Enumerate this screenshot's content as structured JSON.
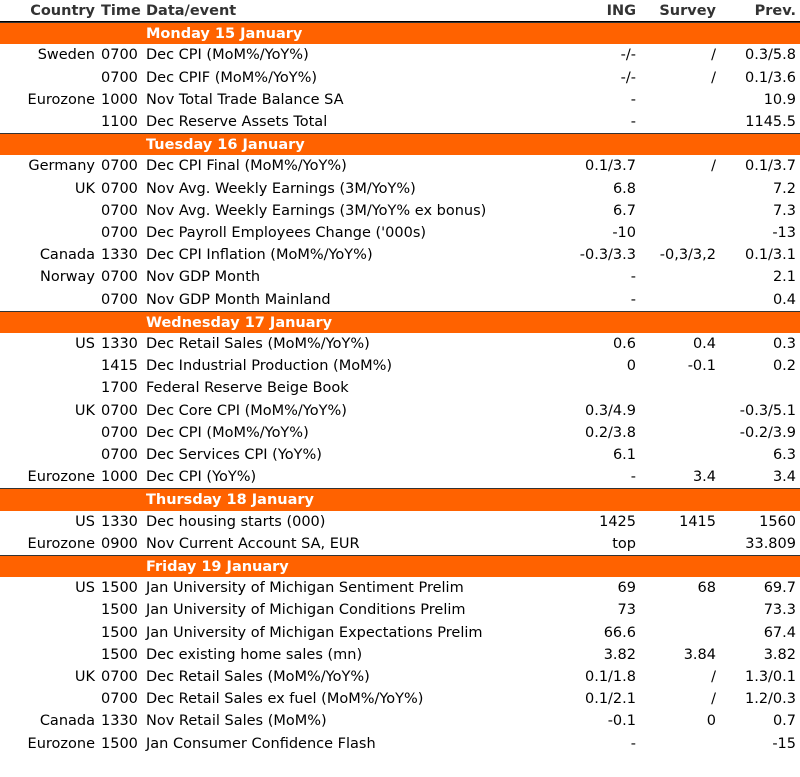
{
  "header": {
    "columns": [
      "Country",
      "Time",
      "Data/event",
      "ING",
      "Survey",
      "Prev."
    ]
  },
  "sections": [
    {
      "day": "Monday 15 January",
      "rows": [
        {
          "country": "Sweden",
          "time": "0700",
          "event": "Dec CPI (MoM%/YoY%)",
          "ing": "-/-",
          "survey": "/",
          "prev": "0.3/5.8"
        },
        {
          "time": "0700",
          "event": "Dec CPIF (MoM%/YoY%)",
          "ing": "-/-",
          "survey": "/",
          "prev": "0.1/3.6"
        },
        {
          "country": "Eurozone",
          "time": "1000",
          "event": "Nov Total Trade Balance SA",
          "ing": "-",
          "prev": "10.9"
        },
        {
          "time": "1100",
          "event": "Dec Reserve Assets Total",
          "ing": "-",
          "prev": "1145.5"
        }
      ]
    },
    {
      "day": "Tuesday 16 January",
      "rows": [
        {
          "country": "Germany",
          "time": "0700",
          "event": "Dec CPI Final (MoM%/YoY%)",
          "ing": "0.1/3.7",
          "survey": "/",
          "prev": "0.1/3.7"
        },
        {
          "country": "UK",
          "time": "0700",
          "event": "Nov Avg. Weekly Earnings (3M/YoY%)",
          "ing": "6.8",
          "prev": "7.2"
        },
        {
          "time": "0700",
          "event": "Nov Avg. Weekly Earnings (3M/YoY% ex bonus)",
          "ing": "6.7",
          "prev": "7.3"
        },
        {
          "time": "0700",
          "event": "Dec Payroll Employees Change ('000s)",
          "ing": "-10",
          "prev": "-13"
        },
        {
          "country": "Canada",
          "time": "1330",
          "event": "Dec CPI Inflation (MoM%/YoY%)",
          "ing": "-0.3/3.3",
          "survey": "-0,3/3,2",
          "prev": "0.1/3.1"
        },
        {
          "country": "Norway",
          "time": "0700",
          "event": "Nov GDP Month",
          "ing": "-",
          "prev": "2.1"
        },
        {
          "time": "0700",
          "event": "Nov GDP Month Mainland",
          "ing": "-",
          "prev": "0.4"
        }
      ]
    },
    {
      "day": "Wednesday 17 January",
      "rows": [
        {
          "country": "US",
          "time": "1330",
          "event": "Dec Retail Sales (MoM%/YoY%)",
          "ing": "0.6",
          "survey": "0.4",
          "prev": "0.3"
        },
        {
          "time": "1415",
          "event": "Dec Industrial Production (MoM%)",
          "ing": "0",
          "survey": "-0.1",
          "prev": "0.2"
        },
        {
          "time": "1700",
          "event": "Federal Reserve Beige Book"
        },
        {
          "country": "UK",
          "time": "0700",
          "event": "Dec Core CPI (MoM%/YoY%)",
          "ing": "0.3/4.9",
          "prev": "-0.3/5.1"
        },
        {
          "time": "0700",
          "event": "Dec CPI (MoM%/YoY%)",
          "ing": "0.2/3.8",
          "prev": "-0.2/3.9"
        },
        {
          "time": "0700",
          "event": "Dec Services CPI (YoY%)",
          "ing": "6.1",
          "prev": "6.3"
        },
        {
          "country": "Eurozone",
          "time": "1000",
          "event": "Dec CPI (YoY%)",
          "ing": "-",
          "survey": "3.4",
          "prev": "3.4"
        }
      ]
    },
    {
      "day": "Thursday 18 January",
      "rows": [
        {
          "country": "US",
          "time": "1330",
          "event": "Dec housing starts (000)",
          "ing": "1425",
          "survey": "1415",
          "prev": "1560"
        },
        {
          "country": "Eurozone",
          "time": "0900",
          "event": "Nov Current Account SA, EUR",
          "ing": "top",
          "prev": "33.809"
        }
      ]
    },
    {
      "day": "Friday 19 January",
      "rows": [
        {
          "country": "US",
          "time": "1500",
          "event": "Jan University of Michigan Sentiment Prelim",
          "ing": "69",
          "survey": "68",
          "prev": "69.7"
        },
        {
          "time": "1500",
          "event": "Jan University of Michigan Conditions Prelim",
          "ing": "73",
          "prev": "73.3"
        },
        {
          "time": "1500",
          "event": "Jan University of Michigan Expectations Prelim",
          "ing": "66.6",
          "prev": "67.4"
        },
        {
          "time": "1500",
          "event": "Dec existing home sales (mn)",
          "ing": "3.82",
          "survey": "3.84",
          "prev": "3.82"
        },
        {
          "country": "UK",
          "time": "0700",
          "event": "Dec Retail Sales (MoM%/YoY%)",
          "ing": "0.1/1.8",
          "survey": "/",
          "prev": "1.3/0.1"
        },
        {
          "time": "0700",
          "event": "Dec Retail Sales ex fuel (MoM%/YoY%)",
          "ing": "0.1/2.1",
          "survey": "/",
          "prev": "1.2/0.3"
        },
        {
          "country": "Canada",
          "time": "1330",
          "event": "Nov Retail Sales (MoM%)",
          "ing": "-0.1",
          "survey": "0",
          "prev": "0.7"
        },
        {
          "country": "Eurozone",
          "time": "1500",
          "event": "Jan Consumer Confidence Flash",
          "ing": "-",
          "prev": "-15"
        }
      ]
    }
  ]
}
